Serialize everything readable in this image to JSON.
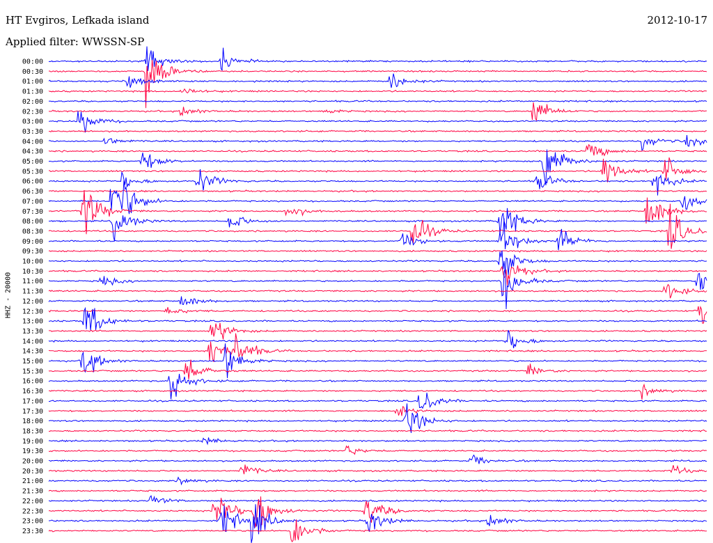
{
  "header": {
    "station": "HT Evgiros, Lefkada island",
    "date": "2012-10-17",
    "filter": "Applied filter: WWSSN-SP"
  },
  "chart_data": {
    "type": "line",
    "title": "HT Evgiros, Lefkada island",
    "subtitle": "Applied filter: WWSSN-SP",
    "date": "2012-10-17",
    "ylabel": "HHZ - 20000",
    "xlabel": "",
    "y_tick_labels": [
      "00:00",
      "00:30",
      "01:00",
      "01:30",
      "02:00",
      "02:30",
      "03:00",
      "03:30",
      "04:00",
      "04:30",
      "05:00",
      "05:30",
      "06:00",
      "06:30",
      "07:00",
      "07:30",
      "08:00",
      "08:30",
      "09:00",
      "09:30",
      "10:00",
      "10:30",
      "11:00",
      "11:30",
      "12:00",
      "12:30",
      "13:00",
      "13:30",
      "14:00",
      "14:30",
      "15:00",
      "15:30",
      "16:00",
      "16:30",
      "17:00",
      "17:30",
      "18:00",
      "18:30",
      "19:00",
      "19:30",
      "20:00",
      "20:30",
      "21:00",
      "21:30",
      "22:00",
      "22:30",
      "23:00",
      "23:30"
    ],
    "row_minutes": 30,
    "x_range_minutes": [
      0,
      30
    ],
    "grid": false,
    "series_colors": [
      "#0000ff",
      "#ff0040"
    ],
    "color_pattern": "alternating rows: even rows blue, odd rows red",
    "events": [
      {
        "row": 0,
        "minute": 7.8,
        "amp": 1.2
      },
      {
        "row": 0,
        "minute": 4.4,
        "amp": 1.5
      },
      {
        "row": 1,
        "minute": 4.4,
        "amp": 3.5
      },
      {
        "row": 2,
        "minute": 3.6,
        "amp": 1.3
      },
      {
        "row": 2,
        "minute": 15.5,
        "amp": 1.0
      },
      {
        "row": 3,
        "minute": 6.0,
        "amp": 0.5
      },
      {
        "row": 5,
        "minute": 6.0,
        "amp": 0.6
      },
      {
        "row": 5,
        "minute": 12.5,
        "amp": 0.3
      },
      {
        "row": 5,
        "minute": 22.0,
        "amp": 1.5
      },
      {
        "row": 6,
        "minute": 1.3,
        "amp": 1.5
      },
      {
        "row": 8,
        "minute": 2.5,
        "amp": 0.5
      },
      {
        "row": 8,
        "minute": 27.0,
        "amp": 0.8
      },
      {
        "row": 8,
        "minute": 29.0,
        "amp": 0.9
      },
      {
        "row": 9,
        "minute": 24.5,
        "amp": 1.2
      },
      {
        "row": 10,
        "minute": 4.2,
        "amp": 1.2
      },
      {
        "row": 10,
        "minute": 22.5,
        "amp": 3.0
      },
      {
        "row": 11,
        "minute": 25.2,
        "amp": 1.8
      },
      {
        "row": 11,
        "minute": 28.0,
        "amp": 1.5
      },
      {
        "row": 12,
        "minute": 6.7,
        "amp": 1.5
      },
      {
        "row": 12,
        "minute": 3.3,
        "amp": 0.8
      },
      {
        "row": 12,
        "minute": 22.2,
        "amp": 1.0
      },
      {
        "row": 12,
        "minute": 27.5,
        "amp": 1.4
      },
      {
        "row": 14,
        "minute": 2.8,
        "amp": 2.0
      },
      {
        "row": 14,
        "minute": 3.2,
        "amp": 2.2
      },
      {
        "row": 14,
        "minute": 28.8,
        "amp": 1.0
      },
      {
        "row": 15,
        "minute": 1.5,
        "amp": 3.0
      },
      {
        "row": 15,
        "minute": 27.2,
        "amp": 2.5
      },
      {
        "row": 15,
        "minute": 10.8,
        "amp": 0.8
      },
      {
        "row": 16,
        "minute": 2.9,
        "amp": 1.8
      },
      {
        "row": 16,
        "minute": 8.2,
        "amp": 1.0
      },
      {
        "row": 16,
        "minute": 20.5,
        "amp": 2.5
      },
      {
        "row": 17,
        "minute": 28.2,
        "amp": 2.5
      },
      {
        "row": 17,
        "minute": 16.5,
        "amp": 2.0
      },
      {
        "row": 18,
        "minute": 16.0,
        "amp": 1.0
      },
      {
        "row": 18,
        "minute": 23.2,
        "amp": 1.3
      },
      {
        "row": 18,
        "minute": 20.5,
        "amp": 2.2
      },
      {
        "row": 20,
        "minute": 20.5,
        "amp": 2.0
      },
      {
        "row": 21,
        "minute": 20.6,
        "amp": 2.0
      },
      {
        "row": 22,
        "minute": 20.6,
        "amp": 2.5
      },
      {
        "row": 22,
        "minute": 2.3,
        "amp": 0.6
      },
      {
        "row": 22,
        "minute": 29.5,
        "amp": 1.5
      },
      {
        "row": 23,
        "minute": 28.0,
        "amp": 1.0
      },
      {
        "row": 24,
        "minute": 6.0,
        "amp": 0.8
      },
      {
        "row": 25,
        "minute": 29.6,
        "amp": 2.0
      },
      {
        "row": 25,
        "minute": 5.3,
        "amp": 0.5
      },
      {
        "row": 26,
        "minute": 1.6,
        "amp": 2.2
      },
      {
        "row": 27,
        "minute": 7.4,
        "amp": 1.5
      },
      {
        "row": 28,
        "minute": 20.8,
        "amp": 1.2
      },
      {
        "row": 29,
        "minute": 7.3,
        "amp": 2.0
      },
      {
        "row": 29,
        "minute": 8.5,
        "amp": 1.5
      },
      {
        "row": 30,
        "minute": 1.5,
        "amp": 1.8
      },
      {
        "row": 30,
        "minute": 8.0,
        "amp": 1.8
      },
      {
        "row": 31,
        "minute": 6.2,
        "amp": 1.5
      },
      {
        "row": 31,
        "minute": 21.8,
        "amp": 0.6
      },
      {
        "row": 32,
        "minute": 5.5,
        "amp": 2.0
      },
      {
        "row": 33,
        "minute": 27.0,
        "amp": 0.6
      },
      {
        "row": 34,
        "minute": 16.8,
        "amp": 1.5
      },
      {
        "row": 35,
        "minute": 15.8,
        "amp": 0.5
      },
      {
        "row": 36,
        "minute": 16.2,
        "amp": 2.0
      },
      {
        "row": 38,
        "minute": 7.0,
        "amp": 0.4
      },
      {
        "row": 39,
        "minute": 13.5,
        "amp": 0.5
      },
      {
        "row": 40,
        "minute": 19.2,
        "amp": 0.6
      },
      {
        "row": 41,
        "minute": 8.7,
        "amp": 0.8
      },
      {
        "row": 41,
        "minute": 28.3,
        "amp": 0.5
      },
      {
        "row": 42,
        "minute": 5.9,
        "amp": 0.4
      },
      {
        "row": 44,
        "minute": 4.6,
        "amp": 0.6
      },
      {
        "row": 45,
        "minute": 7.5,
        "amp": 2.5
      },
      {
        "row": 45,
        "minute": 9.3,
        "amp": 2.5
      },
      {
        "row": 45,
        "minute": 14.4,
        "amp": 1.8
      },
      {
        "row": 46,
        "minute": 7.8,
        "amp": 2.0
      },
      {
        "row": 46,
        "minute": 9.2,
        "amp": 2.0
      },
      {
        "row": 46,
        "minute": 14.5,
        "amp": 1.5
      },
      {
        "row": 46,
        "minute": 20.0,
        "amp": 0.8
      },
      {
        "row": 47,
        "minute": 11.0,
        "amp": 2.0
      }
    ]
  }
}
